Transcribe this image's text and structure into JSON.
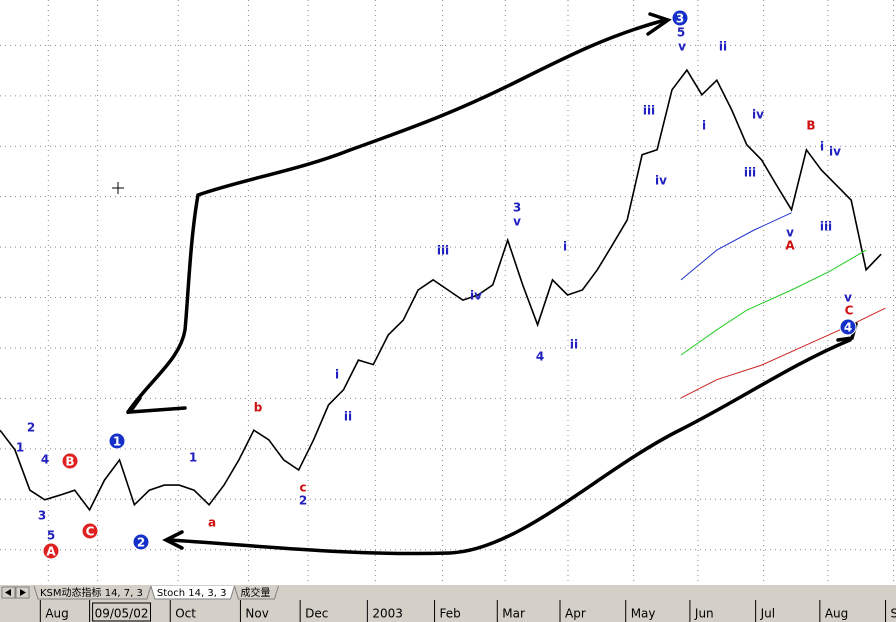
{
  "chart_data": {
    "type": "line",
    "xlim": [
      0,
      60
    ],
    "ylim": [
      93,
      209
    ],
    "yticks": [
      100,
      110,
      120,
      130,
      140,
      150,
      160,
      170,
      180,
      190,
      200
    ],
    "xticks": [
      {
        "value": 2.7,
        "label": "Aug"
      },
      {
        "value": 6.0,
        "label": "09/05/02"
      },
      {
        "value": 11.4,
        "label": "Oct"
      },
      {
        "value": 16.1,
        "label": "Nov"
      },
      {
        "value": 20.1,
        "label": "Dec"
      },
      {
        "value": 24.6,
        "label": "2003"
      },
      {
        "value": 29.1,
        "label": "Feb"
      },
      {
        "value": 33.3,
        "label": "Mar"
      },
      {
        "value": 37.5,
        "label": "Apr"
      },
      {
        "value": 41.9,
        "label": "May"
      },
      {
        "value": 46.2,
        "label": "Jun"
      },
      {
        "value": 50.6,
        "label": "Jul"
      },
      {
        "value": 54.9,
        "label": "Aug"
      },
      {
        "value": 59.3,
        "label": "S"
      }
    ],
    "grid": true,
    "series": [
      {
        "color": "#000000",
        "x": [
          0,
          1,
          2,
          3,
          4,
          5,
          6,
          7,
          8,
          9,
          10,
          11,
          12,
          13,
          14,
          15,
          16,
          17,
          18,
          19,
          20,
          21,
          22,
          23,
          24,
          25,
          26,
          27,
          28,
          29,
          30,
          31,
          32,
          33,
          34,
          35,
          36,
          37,
          38,
          39,
          40,
          41,
          42,
          43,
          44,
          45,
          46,
          47,
          48,
          49,
          50,
          51,
          52,
          53,
          54,
          55,
          56,
          57,
          58,
          59
        ],
        "values": [
          123.7,
          119.8,
          111.8,
          109.9,
          110.8,
          111.8,
          107.9,
          113.8,
          117.8,
          108.9,
          111.8,
          112.8,
          112.8,
          111.8,
          108.9,
          112.8,
          117.8,
          123.7,
          121.8,
          117.8,
          115.8,
          121.8,
          128.7,
          131.7,
          137.6,
          136.7,
          142.6,
          145.5,
          151.5,
          153.5,
          151.5,
          149.5,
          150.5,
          152.5,
          161.4,
          152.5,
          144.6,
          153.5,
          150.5,
          151.5,
          155.5,
          160.4,
          165.4,
          178.3,
          179.3,
          191.2,
          195.1,
          190.2,
          193.1,
          187.2,
          180.3,
          177.3,
          172.3,
          167.4,
          179.3,
          175.3,
          172.3,
          169.3,
          155.5,
          158.6
        ]
      },
      {
        "color": "#2233cc",
        "x": [
          45.6,
          48,
          50.5,
          53
        ],
        "values": [
          153.5,
          159.4,
          163.4,
          166.8
        ]
      },
      {
        "color": "#22cc22",
        "x": [
          45.6,
          48,
          50,
          53,
          55.5,
          58
        ],
        "values": [
          138.6,
          143.6,
          147.5,
          151.5,
          155.1,
          159.4
        ]
      },
      {
        "color": "#cc2222",
        "x": [
          45.6,
          48,
          51,
          54,
          57,
          59.3
        ],
        "values": [
          130.1,
          133.7,
          136.6,
          140.6,
          144.6,
          147.9
        ]
      }
    ],
    "annotations": [
      {
        "text": "2",
        "color": "#2020c0"
      },
      {
        "text": "1",
        "color": "#2020c0"
      },
      {
        "text": "4",
        "color": "#2020c0"
      },
      {
        "text": "3",
        "color": "#2020c0"
      },
      {
        "text": "5",
        "color": "#2020c0"
      },
      {
        "text": "A",
        "color": "#e02020",
        "circled": true
      },
      {
        "text": "B",
        "color": "#e02020",
        "circled": true
      },
      {
        "text": "C",
        "color": "#e02020",
        "circled": true
      },
      {
        "text": "1",
        "color": "#1530c8",
        "circled": true
      },
      {
        "text": "2",
        "color": "#1530c8",
        "circled": true
      },
      {
        "text": "1",
        "color": "#2020c0"
      },
      {
        "text": "a",
        "color": "#d01010"
      },
      {
        "text": "b",
        "color": "#d01010"
      },
      {
        "text": "c",
        "color": "#d01010"
      },
      {
        "text": "2",
        "color": "#2020c0"
      },
      {
        "text": "i",
        "color": "#2020c0"
      },
      {
        "text": "ii",
        "color": "#2020c0"
      },
      {
        "text": "iii",
        "color": "#2020c0"
      },
      {
        "text": "iv",
        "color": "#2020c0"
      },
      {
        "text": "3",
        "color": "#2020c0"
      },
      {
        "text": "v",
        "color": "#2020c0"
      },
      {
        "text": "4",
        "color": "#2020c0"
      },
      {
        "text": "i",
        "color": "#2020c0"
      },
      {
        "text": "ii",
        "color": "#2020c0"
      },
      {
        "text": "iii",
        "color": "#2020c0"
      },
      {
        "text": "iv",
        "color": "#2020c0"
      },
      {
        "text": "3",
        "color": "#1530c8",
        "circled": true
      },
      {
        "text": "5",
        "color": "#2020c0"
      },
      {
        "text": "v",
        "color": "#2020c0"
      },
      {
        "text": "ii",
        "color": "#2020c0"
      },
      {
        "text": "i",
        "color": "#2020c0"
      },
      {
        "text": "iv",
        "color": "#2020c0"
      },
      {
        "text": "iii",
        "color": "#2020c0"
      },
      {
        "text": "v",
        "color": "#2020c0"
      },
      {
        "text": "A",
        "color": "#d01010"
      },
      {
        "text": "B",
        "color": "#d01010"
      },
      {
        "text": "i",
        "color": "#2020c0"
      },
      {
        "text": "iv",
        "color": "#2020c0"
      },
      {
        "text": "iii",
        "color": "#2020c0"
      },
      {
        "text": "v",
        "color": "#2020c0"
      },
      {
        "text": "C",
        "color": "#d01010"
      },
      {
        "text": "4",
        "color": "#1530c8",
        "circled": true
      }
    ],
    "tabs": [
      "KSM动态指标 14, 7, 3",
      "Stoch 14, 3, 3",
      "成交量"
    ]
  }
}
